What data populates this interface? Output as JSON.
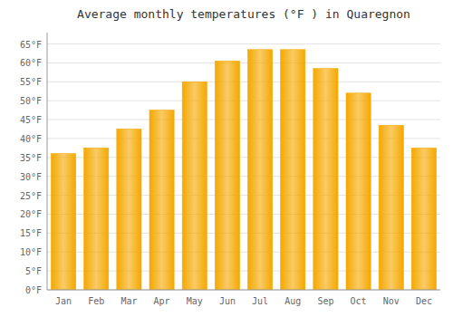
{
  "chart_data": {
    "type": "bar",
    "title": "Average monthly temperatures (°F ) in Quaregnon",
    "categories": [
      "Jan",
      "Feb",
      "Mar",
      "Apr",
      "May",
      "Jun",
      "Jul",
      "Aug",
      "Sep",
      "Oct",
      "Nov",
      "Dec"
    ],
    "values": [
      36,
      37.5,
      42.5,
      47.5,
      55,
      60.5,
      63.5,
      63.5,
      58.5,
      52,
      43.5,
      37.5
    ],
    "color": "#F5A800",
    "ylim": [
      0,
      68
    ],
    "yticks": [
      {
        "value": 0,
        "label": "0°F"
      },
      {
        "value": 5,
        "label": "5°F"
      },
      {
        "value": 10,
        "label": "10°F"
      },
      {
        "value": 15,
        "label": "15°F"
      },
      {
        "value": 20,
        "label": "20°F"
      },
      {
        "value": 25,
        "label": "25°F"
      },
      {
        "value": 30,
        "label": "30°F"
      },
      {
        "value": 35,
        "label": "35°F"
      },
      {
        "value": 40,
        "label": "40°F"
      },
      {
        "value": 45,
        "label": "45°F"
      },
      {
        "value": 50,
        "label": "50°F"
      },
      {
        "value": 55,
        "label": "55°F"
      },
      {
        "value": 60,
        "label": "60°F"
      },
      {
        "value": 65,
        "label": "65°F"
      }
    ],
    "grid": true
  }
}
